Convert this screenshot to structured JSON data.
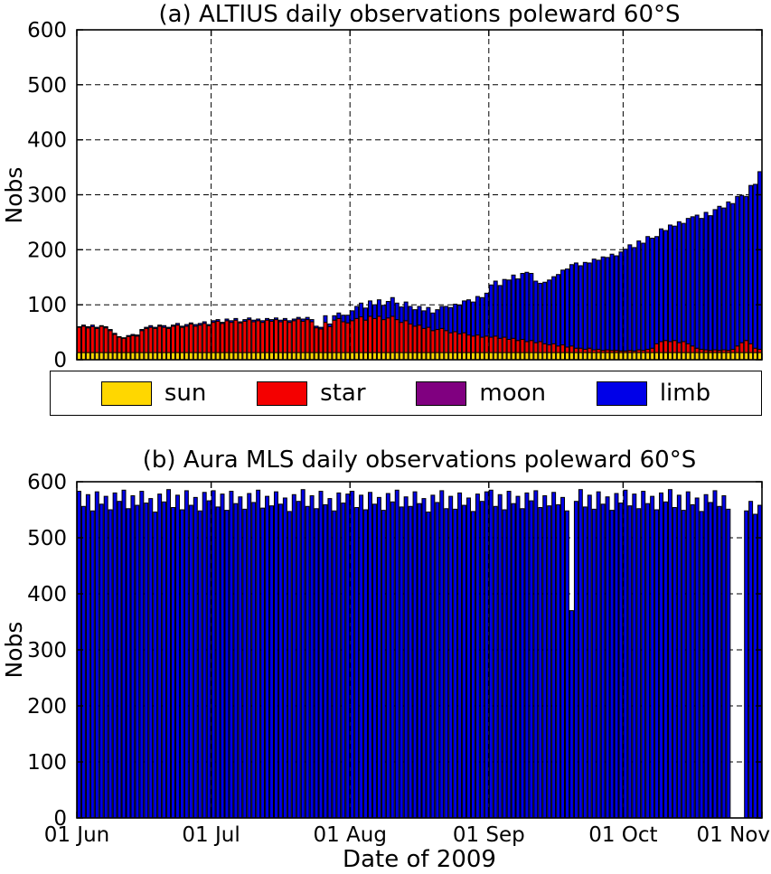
{
  "figure": {
    "background": "#ffffff"
  },
  "legend": {
    "entries": [
      {
        "label": "sun",
        "color": "#FFD700"
      },
      {
        "label": "star",
        "color": "#F40000"
      },
      {
        "label": "moon",
        "color": "#800080"
      },
      {
        "label": "limb",
        "color": "#0000E8"
      }
    ]
  },
  "chart_data": [
    {
      "type": "bar",
      "stacked": true,
      "title": "(a) ALTIUS daily observations poleward 60°S",
      "ylabel": "Nobs",
      "ylim": [
        0,
        600
      ],
      "yticks": [
        0,
        100,
        200,
        300,
        400,
        500,
        600
      ],
      "grid": true,
      "x_start": "01 Jun 2009",
      "x_end": "01 Nov 2009",
      "x_span_days": 153,
      "xtick_labels": [
        "01 Jun",
        "01 Jul",
        "01 Aug",
        "01 Sep",
        "01 Oct",
        "01 Nov"
      ],
      "xtick_day_index": [
        0,
        30,
        61,
        92,
        122,
        153
      ],
      "show_x_labels": false,
      "series": [
        {
          "name": "sun",
          "color": "#FFD700",
          "values": [
            13,
            13,
            13,
            13,
            13,
            13,
            13,
            13,
            13,
            13,
            13,
            13,
            13,
            13,
            13,
            13,
            13,
            13,
            13,
            13,
            13,
            13,
            13,
            13,
            13,
            13,
            13,
            13,
            13,
            13,
            13,
            13,
            13,
            13,
            13,
            13,
            13,
            13,
            13,
            13,
            13,
            13,
            13,
            13,
            13,
            13,
            13,
            13,
            13,
            13,
            13,
            13,
            13,
            13,
            13,
            13,
            13,
            13,
            13,
            13,
            13,
            13,
            13,
            13,
            13,
            13,
            13,
            13,
            13,
            13,
            13,
            13,
            13,
            13,
            13,
            13,
            13,
            13,
            13,
            13,
            13,
            13,
            13,
            13,
            13,
            13,
            13,
            13,
            13,
            13,
            13,
            13,
            13,
            13,
            13,
            13,
            13,
            13,
            13,
            13,
            13,
            13,
            13,
            13,
            13,
            13,
            13,
            13,
            13,
            13,
            13,
            13,
            13,
            13,
            13,
            13,
            13,
            13,
            13,
            13,
            13,
            13,
            13,
            13,
            13,
            13,
            13,
            13,
            13,
            13,
            13,
            13,
            13,
            13,
            13,
            13,
            13,
            13,
            13,
            13,
            13,
            13,
            13,
            13,
            13,
            13,
            13,
            13,
            13,
            13,
            13,
            13,
            13
          ]
        },
        {
          "name": "star",
          "color": "#F40000",
          "values": [
            46,
            48,
            45,
            47,
            44,
            48,
            45,
            40,
            33,
            28,
            26,
            29,
            31,
            30,
            40,
            44,
            46,
            44,
            48,
            46,
            44,
            48,
            50,
            46,
            48,
            52,
            48,
            50,
            53,
            49,
            55,
            57,
            53,
            58,
            55,
            59,
            54,
            57,
            60,
            56,
            58,
            55,
            59,
            57,
            60,
            56,
            59,
            55,
            58,
            61,
            57,
            60,
            56,
            45,
            43,
            55,
            47,
            59,
            62,
            56,
            54,
            58,
            62,
            65,
            59,
            66,
            62,
            66,
            60,
            63,
            66,
            60,
            55,
            58,
            52,
            48,
            50,
            44,
            46,
            40,
            42,
            44,
            40,
            36,
            38,
            34,
            36,
            32,
            30,
            32,
            28,
            30,
            28,
            30,
            26,
            28,
            24,
            26,
            22,
            24,
            20,
            22,
            18,
            20,
            16,
            14,
            16,
            12,
            14,
            10,
            12,
            8,
            8,
            6,
            8,
            5,
            6,
            4,
            5,
            4,
            4,
            3,
            3,
            4,
            3,
            5,
            4,
            6,
            8,
            16,
            20,
            22,
            20,
            22,
            18,
            20,
            16,
            12,
            8,
            6,
            5,
            4,
            5,
            4,
            5,
            4,
            6,
            12,
            18,
            22,
            16,
            8,
            6
          ]
        },
        {
          "name": "moon",
          "color": "#800080",
          "values": [
            0,
            0,
            0,
            0,
            0,
            0,
            0,
            0,
            0,
            0,
            0,
            0,
            0,
            0,
            0,
            0,
            0,
            0,
            0,
            0,
            0,
            0,
            0,
            0,
            0,
            0,
            0,
            0,
            0,
            0,
            0,
            0,
            0,
            0,
            0,
            0,
            0,
            0,
            0,
            0,
            0,
            0,
            0,
            0,
            0,
            0,
            0,
            0,
            0,
            0,
            0,
            0,
            0,
            0,
            0,
            0,
            0,
            0,
            0,
            0,
            0,
            0,
            0,
            0,
            0,
            0,
            0,
            0,
            0,
            0,
            0,
            0,
            0,
            0,
            0,
            0,
            0,
            0,
            0,
            0,
            0,
            0,
            0,
            0,
            0,
            0,
            0,
            0,
            0,
            0,
            0,
            0,
            0,
            0,
            0,
            0,
            0,
            0,
            0,
            0,
            0,
            0,
            0,
            0,
            0,
            0,
            0,
            0,
            0,
            0,
            0,
            0,
            0,
            0,
            0,
            0,
            0,
            0,
            0,
            0,
            0,
            0,
            0,
            0,
            0,
            0,
            0,
            0,
            0,
            0,
            0,
            0,
            0,
            0,
            0,
            0,
            0,
            0,
            0,
            0,
            0,
            0,
            0,
            0,
            0,
            0,
            0,
            0,
            0,
            0,
            0,
            0,
            0
          ]
        },
        {
          "name": "limb",
          "color": "#0000E8",
          "values": [
            1,
            2,
            2,
            3,
            2,
            1,
            2,
            2,
            2,
            1,
            1,
            2,
            2,
            2,
            2,
            2,
            3,
            2,
            2,
            3,
            2,
            2,
            3,
            2,
            3,
            2,
            3,
            3,
            3,
            2,
            3,
            3,
            2,
            3,
            3,
            3,
            2,
            3,
            3,
            3,
            3,
            3,
            3,
            3,
            3,
            3,
            3,
            3,
            3,
            3,
            4,
            4,
            4,
            3,
            3,
            12,
            5,
            8,
            10,
            12,
            14,
            18,
            22,
            25,
            22,
            28,
            25,
            30,
            26,
            30,
            34,
            30,
            28,
            34,
            32,
            30,
            34,
            32,
            36,
            32,
            36,
            40,
            44,
            46,
            50,
            52,
            58,
            64,
            62,
            70,
            72,
            78,
            95,
            100,
            96,
            105,
            108,
            115,
            112,
            120,
            126,
            122,
            112,
            106,
            112,
            118,
            122,
            130,
            136,
            142,
            148,
            155,
            150,
            158,
            155,
            165,
            162,
            170,
            168,
            175,
            172,
            180,
            185,
            192,
            188,
            198,
            195,
            205,
            200,
            195,
            205,
            200,
            212,
            208,
            220,
            215,
            228,
            235,
            242,
            238,
            250,
            245,
            255,
            262,
            258,
            270,
            265,
            272,
            268,
            262,
            288,
            298,
            323
          ]
        }
      ]
    },
    {
      "type": "bar",
      "stacked": false,
      "title": "(b) Aura MLS daily observations poleward 60°S",
      "ylabel": "Nobs",
      "xlabel": "Date of 2009",
      "ylim": [
        0,
        600
      ],
      "yticks": [
        0,
        100,
        200,
        300,
        400,
        500,
        600
      ],
      "grid": true,
      "x_start": "01 Jun 2009",
      "x_end": "01 Nov 2009",
      "x_span_days": 153,
      "xtick_labels": [
        "01 Jun",
        "01 Jul",
        "01 Aug",
        "01 Sep",
        "01 Oct",
        "01 Nov"
      ],
      "xtick_day_index": [
        0,
        30,
        61,
        92,
        122,
        153
      ],
      "show_x_labels": true,
      "series": [
        {
          "name": "limb",
          "color": "#0000E8",
          "values": [
            583,
            556,
            577,
            548,
            582,
            560,
            574,
            550,
            580,
            565,
            585,
            552,
            575,
            558,
            583,
            562,
            570,
            546,
            578,
            564,
            586,
            554,
            576,
            550,
            584,
            558,
            572,
            548,
            581,
            566,
            584,
            555,
            578,
            549,
            583,
            561,
            573,
            551,
            579,
            563,
            585,
            553,
            574,
            557,
            582,
            560,
            571,
            547,
            577,
            565,
            586,
            556,
            575,
            552,
            583,
            559,
            570,
            548,
            580,
            562,
            578,
            583,
            554,
            576,
            550,
            581,
            560,
            572,
            549,
            579,
            564,
            585,
            555,
            573,
            556,
            582,
            561,
            570,
            546,
            576,
            563,
            584,
            552,
            574,
            551,
            580,
            558,
            571,
            547,
            578,
            565,
            582,
            585,
            556,
            577,
            550,
            583,
            561,
            574,
            552,
            580,
            566,
            584,
            554,
            575,
            557,
            581,
            559,
            572,
            548,
            370,
            565,
            586,
            555,
            576,
            551,
            582,
            560,
            573,
            549,
            579,
            562,
            585,
            557,
            578,
            552,
            583,
            561,
            574,
            550,
            580,
            564,
            586,
            554,
            576,
            549,
            582,
            559,
            571,
            547,
            577,
            563,
            584,
            556,
            575,
            551,
            0,
            0,
            0,
            548,
            565,
            542,
            558
          ]
        }
      ]
    }
  ]
}
